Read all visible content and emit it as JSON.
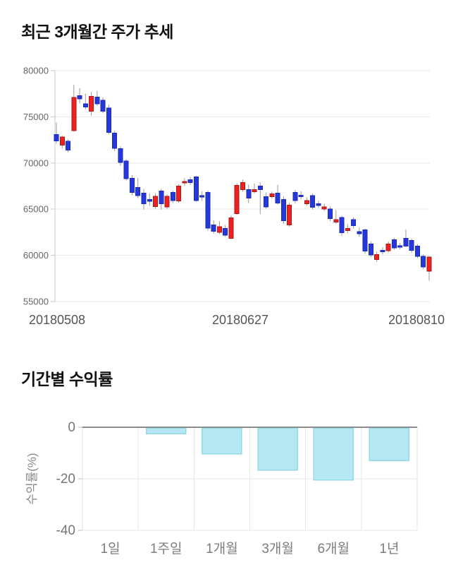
{
  "page": {
    "background": "#ffffff"
  },
  "price_section": {
    "title": "최근 3개월간 주가 추세"
  },
  "returns_section": {
    "title": "기간별 수익률"
  },
  "chart_data": [
    {
      "type": "candlestick",
      "title": "최근 3개월간 주가 추세",
      "ylim": [
        55000,
        80000
      ],
      "yticks": [
        80000,
        75000,
        70000,
        65000,
        60000,
        55000
      ],
      "x_tick_labels": [
        "20180508",
        "20180627",
        "20180810"
      ],
      "grid": true,
      "up_color": "#ef2020",
      "up_stroke": "#a61b1b",
      "down_color": "#2637dc",
      "down_stroke": "#1b2bb4",
      "wick_color": "#9a9a9a",
      "candles_format": [
        "open",
        "high",
        "low",
        "close"
      ],
      "candles": [
        [
          73100,
          74400,
          72100,
          72400
        ],
        [
          71950,
          72950,
          71550,
          72800
        ],
        [
          72350,
          72550,
          71150,
          71400
        ],
        [
          73500,
          78450,
          73400,
          77100
        ],
        [
          77300,
          78100,
          76450,
          76950
        ],
        [
          76400,
          77500,
          75800,
          76050
        ],
        [
          75600,
          77700,
          75100,
          77200
        ],
        [
          77150,
          77800,
          76200,
          76400
        ],
        [
          76800,
          77100,
          75400,
          75600
        ],
        [
          75950,
          76300,
          73100,
          73300
        ],
        [
          73250,
          73500,
          71300,
          71600
        ],
        [
          71550,
          71800,
          69700,
          70050
        ],
        [
          70200,
          70400,
          68100,
          68300
        ],
        [
          68350,
          68700,
          66500,
          66800
        ],
        [
          67350,
          68400,
          66200,
          66450
        ],
        [
          66750,
          67200,
          64950,
          65600
        ],
        [
          66050,
          66700,
          65350,
          65850
        ],
        [
          65300,
          66700,
          65050,
          66400
        ],
        [
          66950,
          67200,
          64950,
          65600
        ],
        [
          65250,
          66600,
          65000,
          66400
        ],
        [
          66800,
          67000,
          65650,
          65950
        ],
        [
          65900,
          67700,
          65700,
          67500
        ],
        [
          67900,
          68350,
          67500,
          68000
        ],
        [
          68180,
          68500,
          67650,
          67880
        ],
        [
          68500,
          68600,
          65800,
          65950
        ],
        [
          66450,
          66950,
          65900,
          66400
        ],
        [
          66800,
          67000,
          62700,
          62950
        ],
        [
          63280,
          63800,
          62350,
          62600
        ],
        [
          62500,
          63700,
          62300,
          63100
        ],
        [
          62900,
          63300,
          62000,
          62200
        ],
        [
          61850,
          64300,
          61750,
          64050
        ],
        [
          64510,
          67800,
          64400,
          67570
        ],
        [
          67100,
          68200,
          66900,
          67870
        ],
        [
          67100,
          67650,
          65650,
          66200
        ],
        [
          66900,
          67800,
          66700,
          67100
        ],
        [
          67500,
          67900,
          64500,
          67100
        ],
        [
          66350,
          66800,
          65050,
          65250
        ],
        [
          66350,
          66900,
          66150,
          66650
        ],
        [
          66750,
          67650,
          65500,
          65650
        ],
        [
          66050,
          66400,
          63400,
          63750
        ],
        [
          63280,
          65700,
          63100,
          65430
        ],
        [
          66800,
          67100,
          65600,
          65950
        ],
        [
          66500,
          66950,
          66050,
          66450
        ],
        [
          65600,
          66300,
          65400,
          65950
        ],
        [
          66450,
          66700,
          64950,
          65200
        ],
        [
          65600,
          65900,
          65100,
          65380
        ],
        [
          65000,
          65600,
          64800,
          65230
        ],
        [
          65000,
          65300,
          63700,
          64000
        ],
        [
          63600,
          64900,
          63400,
          63850
        ],
        [
          64080,
          64300,
          62100,
          62450
        ],
        [
          62680,
          63400,
          62400,
          62900
        ],
        [
          63850,
          64100,
          62900,
          63200
        ],
        [
          62550,
          63000,
          62000,
          62350
        ],
        [
          62750,
          62900,
          60200,
          60450
        ],
        [
          61250,
          61500,
          59800,
          60050
        ],
        [
          59550,
          60400,
          59300,
          60100
        ],
        [
          60550,
          60900,
          60100,
          60400
        ],
        [
          60500,
          61500,
          60300,
          61250
        ],
        [
          61700,
          61900,
          60600,
          60800
        ],
        [
          61050,
          61350,
          60650,
          60900
        ],
        [
          61850,
          62800,
          60900,
          61000
        ],
        [
          61600,
          61800,
          60300,
          60550
        ],
        [
          61000,
          61200,
          59700,
          59900
        ],
        [
          59900,
          60100,
          58500,
          58750
        ],
        [
          58300,
          59900,
          57250,
          59800
        ]
      ]
    },
    {
      "type": "bar",
      "title": "기간별 수익률",
      "ylabel": "수익률(%)",
      "categories": [
        "1일",
        "1주일",
        "1개월",
        "3개월",
        "6개월",
        "1년"
      ],
      "values": [
        0,
        -2.5,
        -10.4,
        -16.7,
        -20.5,
        -12.9
      ],
      "yticks": [
        0,
        -20,
        -40
      ],
      "ylim": [
        -40,
        0
      ],
      "grid": true,
      "bar_fill": "#b5e8f2",
      "bar_stroke": "#92d8e6",
      "zero_line_color": "#8c8c8c"
    }
  ]
}
